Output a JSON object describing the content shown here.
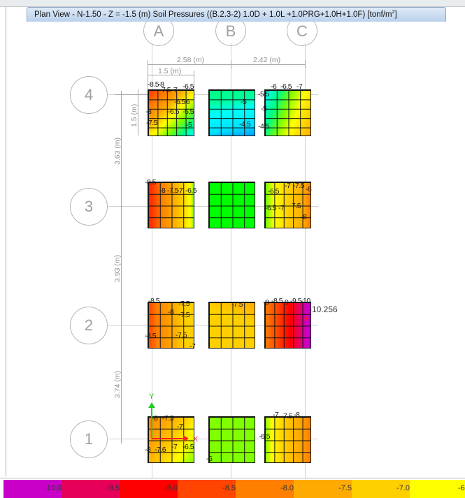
{
  "window": {
    "tab_title": "Plan View - N-1.50 - Z = -1.5 (m)   Soil Pressures    ((B.2.3-2) 1.0D + 1.0L +1.0PRG+1.0H+1.0F)  [tonf/m",
    "tab_title_sup": "2",
    "tab_title_end": "]"
  },
  "grid": {
    "columns": [
      "A",
      "B",
      "C"
    ],
    "rows": [
      "4",
      "3",
      "2",
      "1"
    ]
  },
  "dimensions": {
    "ab": "2.58 (m)",
    "bc": "2.42 (m)",
    "footing_width": "1.5 (m)",
    "footing_depth": "1.5 (m)",
    "r4_r3": "3.63 (m)",
    "r3_r2": "3.93 (m)",
    "r2_r1": "3.74 (m)"
  },
  "axes": {
    "x": "X",
    "y": "Y"
  },
  "footings": {
    "A4": [
      "-8.5",
      "-8",
      "-7.5",
      "-7",
      "-6.5",
      "-6.5",
      "-6",
      "-8",
      "-6.5",
      "-5.5",
      "-7.5",
      "-5"
    ],
    "B4": [
      "-5",
      "-4.5"
    ],
    "C4": [
      "-5.5",
      "-6",
      "-6.5",
      "-7",
      "-5",
      "-4.5"
    ],
    "A3": [
      "-8.5",
      "-8",
      "-7.5",
      "-7",
      "-6.5"
    ],
    "B3": [],
    "C3": [
      "-7",
      "-7.5",
      "-8",
      "-6.5",
      "-6.5",
      "-7",
      "-7.5",
      "-8"
    ],
    "A2": [
      "-8.5",
      "-7.5",
      "-8",
      "-7.5",
      "-8.5",
      "-7.5",
      "-7"
    ],
    "B2": [
      "-7.5"
    ],
    "C2": [
      "-8",
      "-8.5",
      "-9",
      "-9.5",
      "-10",
      "-10.256"
    ],
    "A1": [
      "-8",
      "-7.5",
      "-7",
      "-8",
      "-7.6",
      "-7",
      "-6.5"
    ],
    "B1": [
      "-6"
    ],
    "C1": [
      "-7",
      "-7.5",
      "-8",
      "-6.5"
    ]
  },
  "legend": {
    "colors": [
      "#c800c8",
      "#e6005a",
      "#ff0000",
      "#ff4500",
      "#ff8000",
      "#ffaa00",
      "#ffd000",
      "#ffff00"
    ],
    "labels": [
      "-10.0",
      "-9.5",
      "-9.0",
      "-8.5",
      "-8.0",
      "-7.5",
      "-7.0",
      "-6"
    ]
  }
}
